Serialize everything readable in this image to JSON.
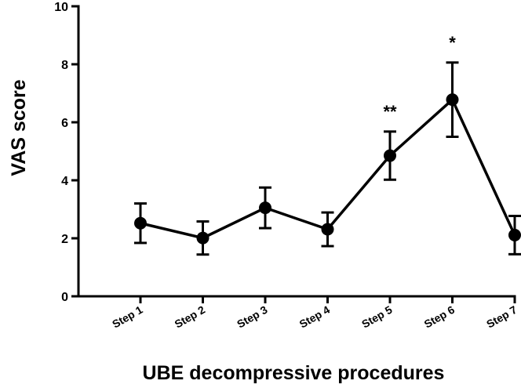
{
  "chart_data": {
    "type": "line",
    "title": "",
    "xlabel": "UBE decompressive procedures",
    "ylabel": "VAS score",
    "ylim": [
      0,
      10
    ],
    "yticks": [
      0,
      2,
      4,
      6,
      8,
      10
    ],
    "grid": false,
    "legend": "none",
    "line_color": "#000000",
    "categories": [
      "Step 1",
      "Step 2",
      "Step 3",
      "Step 4",
      "Step 5",
      "Step 6",
      "Step 7"
    ],
    "series": [
      {
        "values": [
          2.52,
          2.01,
          3.05,
          2.31,
          4.85,
          6.78,
          2.11
        ],
        "error": [
          0.68,
          0.57,
          0.7,
          0.58,
          0.83,
          1.28,
          0.66
        ]
      }
    ],
    "annotations": [
      {
        "category": "Step 5",
        "text": "**"
      },
      {
        "category": "Step 6",
        "text": "*"
      }
    ]
  }
}
